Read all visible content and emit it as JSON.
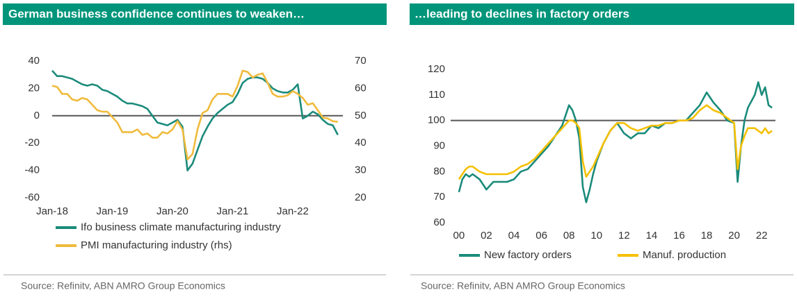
{
  "chart_data": [
    {
      "type": "line",
      "title": "German business confidence continues to weaken…",
      "source": "Source: Refinitv, ABN AMRO Group Economics",
      "categories": [
        "Jan-18",
        null,
        null,
        null,
        null,
        null,
        null,
        null,
        null,
        null,
        null,
        null,
        "Jan-19",
        null,
        null,
        null,
        null,
        null,
        null,
        null,
        null,
        null,
        null,
        null,
        "Jan-20",
        null,
        null,
        null,
        null,
        null,
        null,
        null,
        null,
        null,
        null,
        null,
        "Jan-21",
        null,
        null,
        null,
        null,
        null,
        null,
        null,
        null,
        null,
        null,
        null,
        "Jan-22",
        null,
        null,
        null,
        null,
        null,
        null,
        null,
        null,
        null
      ],
      "series": [
        {
          "name": "Ifo business climate manufacturing industry",
          "color": "#1b8b7b",
          "values": [
            33,
            29,
            29,
            28,
            27,
            25,
            23,
            22,
            23,
            22,
            19,
            18,
            16,
            14,
            11,
            9,
            9,
            8,
            7,
            5,
            0,
            -5,
            -6,
            -7,
            -5,
            -3,
            -8,
            -40,
            -35,
            -25,
            -15,
            -8,
            -2,
            2,
            5,
            8,
            10,
            16,
            24,
            27,
            28,
            28,
            27,
            24,
            20,
            18,
            17,
            17,
            19,
            23,
            -2,
            0,
            3,
            1,
            -3,
            -6,
            -7,
            -14
          ]
        },
        {
          "name": "PMI manufacturing industry (rhs)",
          "color": "#f0bb3c",
          "axis": "y2",
          "values": [
            61,
            60.5,
            58,
            58,
            56,
            55.5,
            56.5,
            56,
            54,
            52,
            51.5,
            51.5,
            49.5,
            47.5,
            44,
            44,
            44,
            45,
            43,
            43.5,
            42,
            42,
            44,
            43.5,
            45,
            48,
            45,
            34,
            36,
            45,
            51,
            52,
            56,
            58,
            58,
            58,
            57,
            61,
            66.5,
            66,
            64,
            65,
            65.5,
            62,
            58,
            57,
            57,
            57.5,
            59,
            58,
            56.5,
            54,
            54.6,
            52,
            49.3,
            49,
            48,
            47.8
          ]
        }
      ],
      "ylim": [
        -60,
        40
      ],
      "yticks": [
        -60,
        -40,
        -20,
        0,
        20,
        40
      ],
      "y2lim": [
        20,
        70
      ],
      "y2ticks": [
        20,
        30,
        40,
        50,
        60,
        70
      ],
      "reference_line": 0
    },
    {
      "type": "line",
      "title": "…leading to declines in factory orders",
      "source": "Source: Refinitv, ABN AMRO Group Economics",
      "x": [
        2000,
        2000.25,
        2000.5,
        2000.75,
        2001,
        2001.5,
        2002,
        2002.5,
        2003,
        2003.5,
        2004,
        2004.5,
        2005,
        2005.5,
        2006,
        2006.5,
        2007,
        2007.5,
        2008,
        2008.25,
        2008.5,
        2008.75,
        2009,
        2009.25,
        2009.5,
        2009.75,
        2010,
        2010.5,
        2011,
        2011.5,
        2012,
        2012.5,
        2013,
        2013.5,
        2014,
        2014.5,
        2015,
        2015.5,
        2016,
        2016.5,
        2017,
        2017.5,
        2018,
        2018.5,
        2019,
        2019.5,
        2020,
        2020.25,
        2020.5,
        2020.75,
        2021,
        2021.5,
        2021.75,
        2022,
        2022.25,
        2022.5,
        2022.75
      ],
      "series": [
        {
          "name": "New factory orders",
          "color": "#1b8b7b",
          "values": [
            72,
            77,
            79,
            78,
            79,
            77,
            73,
            76,
            76,
            76,
            77,
            80,
            81,
            84,
            87,
            90,
            94,
            98,
            106,
            104,
            100,
            93,
            74,
            68,
            73,
            79,
            84,
            91,
            96,
            99,
            95,
            93,
            95,
            95,
            98,
            97,
            99,
            99,
            100,
            100,
            103,
            106,
            111,
            107,
            104,
            100,
            99,
            76,
            90,
            100,
            105,
            110,
            115,
            110,
            113,
            106,
            105
          ]
        },
        {
          "name": "Manuf. production",
          "color": "#f5c000",
          "values": [
            77,
            79,
            81,
            82,
            82,
            80,
            79,
            79,
            79,
            79,
            80,
            82,
            83,
            85,
            88,
            91,
            94,
            97,
            100,
            100,
            99,
            97,
            84,
            78,
            80,
            82,
            85,
            91,
            96,
            99,
            99,
            97,
            96,
            97,
            98,
            98,
            99,
            99,
            100,
            100,
            101,
            104,
            106,
            104,
            103,
            101,
            99,
            81,
            90,
            94,
            97,
            97,
            96,
            95,
            97,
            95,
            96
          ]
        }
      ],
      "xlim": [
        1999.4,
        2023
      ],
      "xticks": [
        {
          "value": 2000,
          "label": "00"
        },
        {
          "value": 2002,
          "label": "02"
        },
        {
          "value": 2004,
          "label": "04"
        },
        {
          "value": 2006,
          "label": "06"
        },
        {
          "value": 2008,
          "label": "08"
        },
        {
          "value": 2010,
          "label": "10"
        },
        {
          "value": 2012,
          "label": "12"
        },
        {
          "value": 2014,
          "label": "14"
        },
        {
          "value": 2016,
          "label": "16"
        },
        {
          "value": 2018,
          "label": "18"
        },
        {
          "value": 2020,
          "label": "20"
        },
        {
          "value": 2022,
          "label": "22"
        }
      ],
      "ylim": [
        60,
        120
      ],
      "yticks": [
        60,
        70,
        80,
        90,
        100,
        110,
        120
      ],
      "reference_line": 100
    }
  ]
}
